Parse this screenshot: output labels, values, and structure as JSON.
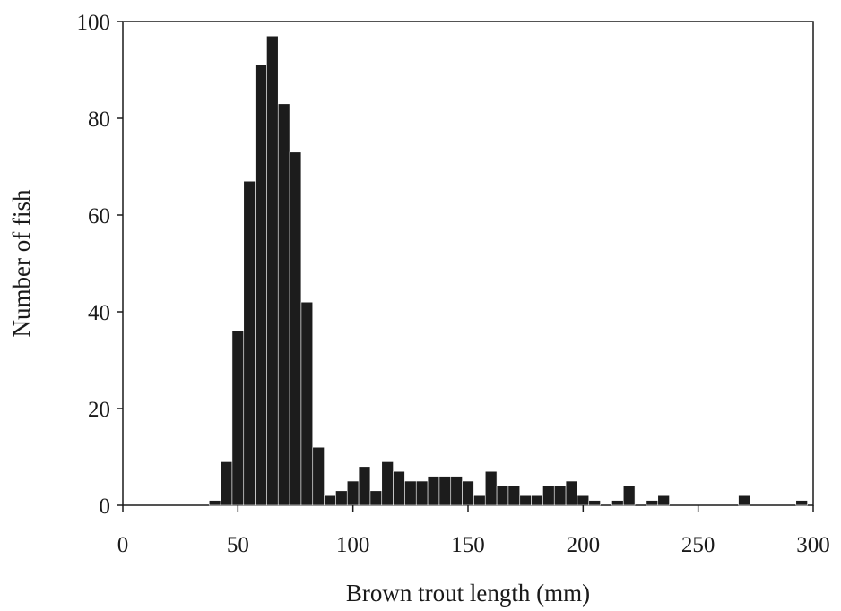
{
  "chart_data": {
    "type": "bar",
    "title": "",
    "xlabel": "Brown trout length (mm)",
    "ylabel": "Number of fish",
    "xlim": [
      0,
      300
    ],
    "ylim": [
      0,
      100
    ],
    "x_ticks": [
      0,
      50,
      100,
      150,
      200,
      250,
      300
    ],
    "y_ticks": [
      0,
      20,
      40,
      60,
      80,
      100
    ],
    "bin_width": 5,
    "grid": false,
    "bar_color": "#1c1c1c",
    "bins": [
      {
        "x_start": 37.5,
        "value": 1
      },
      {
        "x_start": 42.5,
        "value": 9
      },
      {
        "x_start": 47.5,
        "value": 36
      },
      {
        "x_start": 52.5,
        "value": 67
      },
      {
        "x_start": 57.5,
        "value": 91
      },
      {
        "x_start": 62.5,
        "value": 97
      },
      {
        "x_start": 67.5,
        "value": 83
      },
      {
        "x_start": 72.5,
        "value": 73
      },
      {
        "x_start": 77.5,
        "value": 42
      },
      {
        "x_start": 82.5,
        "value": 12
      },
      {
        "x_start": 87.5,
        "value": 2
      },
      {
        "x_start": 92.5,
        "value": 3
      },
      {
        "x_start": 97.5,
        "value": 5
      },
      {
        "x_start": 102.5,
        "value": 8
      },
      {
        "x_start": 107.5,
        "value": 3
      },
      {
        "x_start": 112.5,
        "value": 9
      },
      {
        "x_start": 117.5,
        "value": 7
      },
      {
        "x_start": 122.5,
        "value": 5
      },
      {
        "x_start": 127.5,
        "value": 5
      },
      {
        "x_start": 132.5,
        "value": 6
      },
      {
        "x_start": 137.5,
        "value": 6
      },
      {
        "x_start": 142.5,
        "value": 6
      },
      {
        "x_start": 147.5,
        "value": 5
      },
      {
        "x_start": 152.5,
        "value": 2
      },
      {
        "x_start": 157.5,
        "value": 7
      },
      {
        "x_start": 162.5,
        "value": 4
      },
      {
        "x_start": 167.5,
        "value": 4
      },
      {
        "x_start": 172.5,
        "value": 2
      },
      {
        "x_start": 177.5,
        "value": 2
      },
      {
        "x_start": 182.5,
        "value": 4
      },
      {
        "x_start": 187.5,
        "value": 4
      },
      {
        "x_start": 192.5,
        "value": 5
      },
      {
        "x_start": 197.5,
        "value": 2
      },
      {
        "x_start": 202.5,
        "value": 1
      },
      {
        "x_start": 212.5,
        "value": 1
      },
      {
        "x_start": 217.5,
        "value": 4
      },
      {
        "x_start": 227.5,
        "value": 1
      },
      {
        "x_start": 232.5,
        "value": 2
      },
      {
        "x_start": 267.5,
        "value": 2
      },
      {
        "x_start": 292.5,
        "value": 1
      }
    ]
  }
}
